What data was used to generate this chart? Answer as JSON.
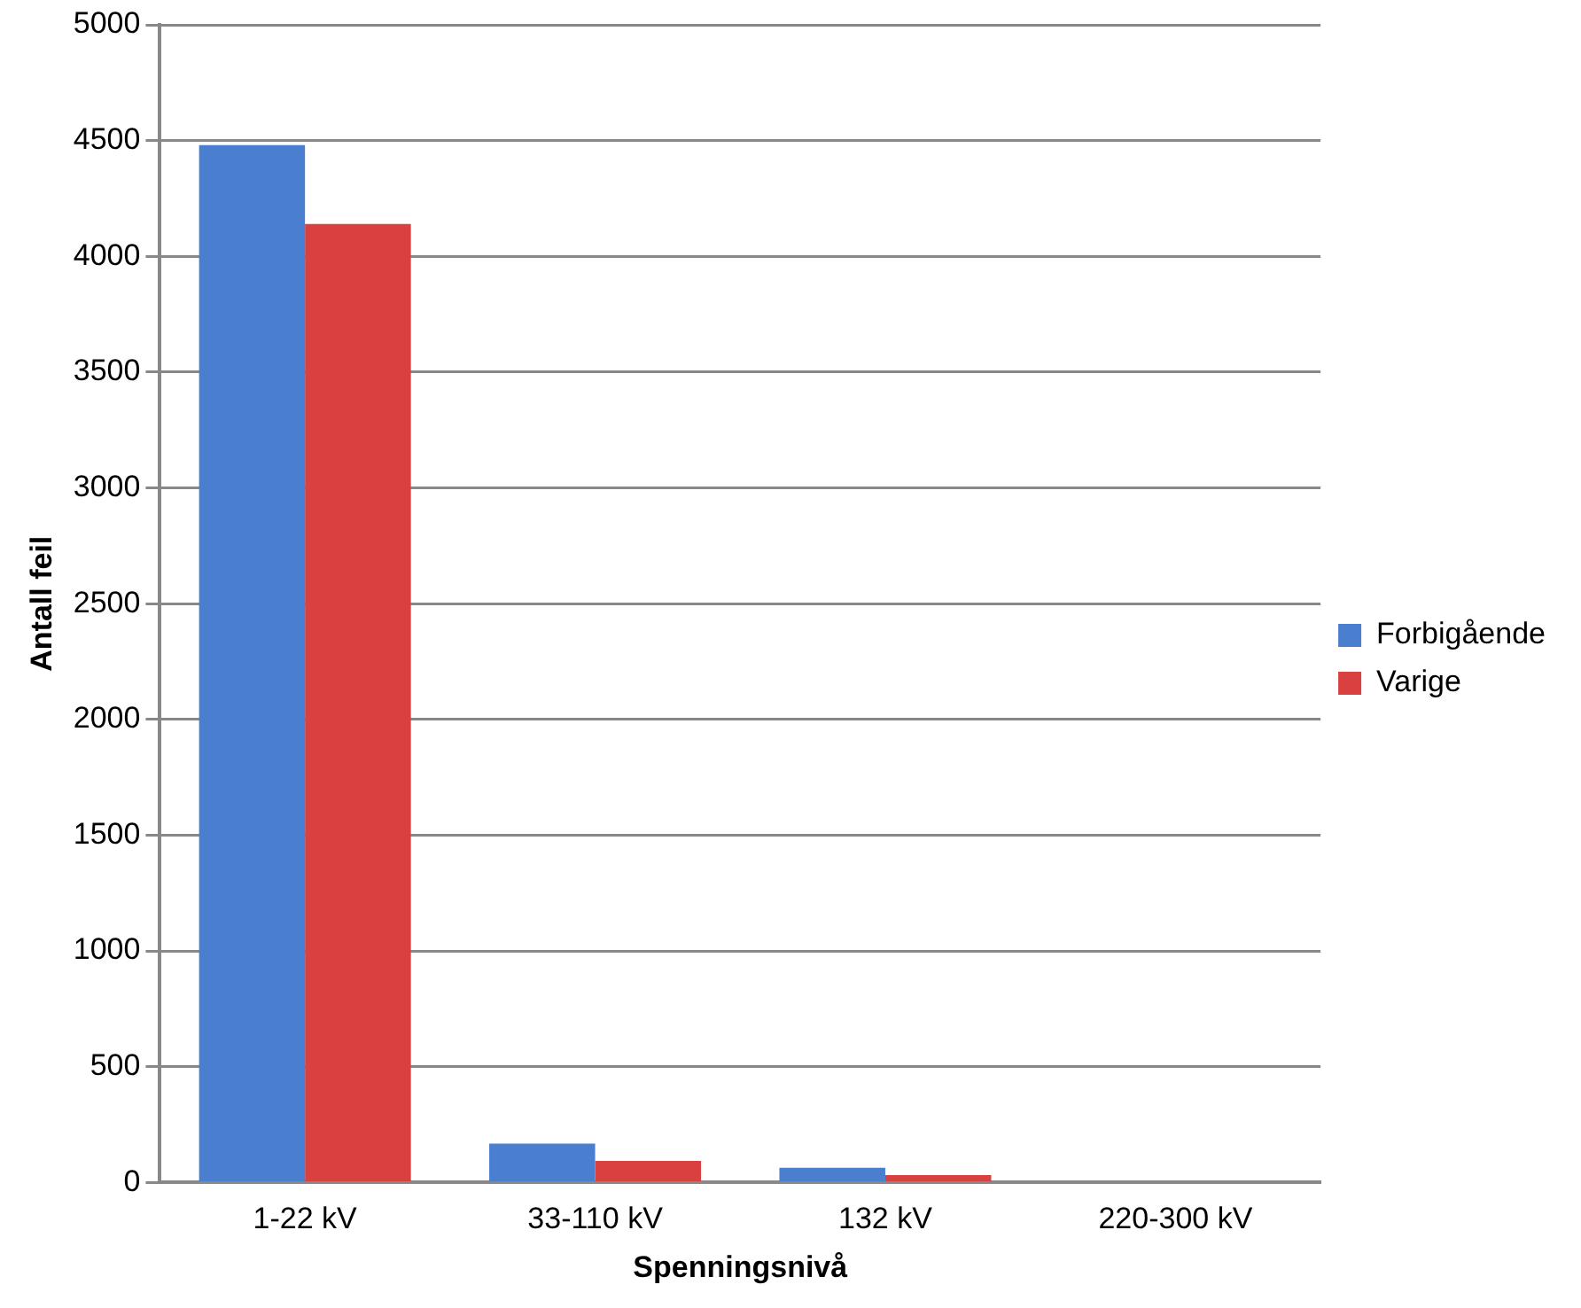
{
  "chart_data": {
    "type": "bar",
    "xlabel": "Spenningsnivå",
    "ylabel": "Antall feil",
    "categories": [
      "1-22 kV",
      "33-110 kV",
      "132 kV",
      "220-300 kV"
    ],
    "series": [
      {
        "name": "Forbigående",
        "color": "#4a7fcf",
        "values": [
          4480,
          168,
          64,
          null
        ]
      },
      {
        "name": "Varige",
        "color": "#d94040",
        "values": [
          4140,
          93,
          32,
          null
        ]
      }
    ],
    "ylim": [
      0,
      5000
    ],
    "yticks": [
      0,
      500,
      1000,
      1500,
      2000,
      2500,
      3000,
      3500,
      4000,
      4500,
      5000
    ],
    "grid": "y",
    "legend": "right"
  }
}
